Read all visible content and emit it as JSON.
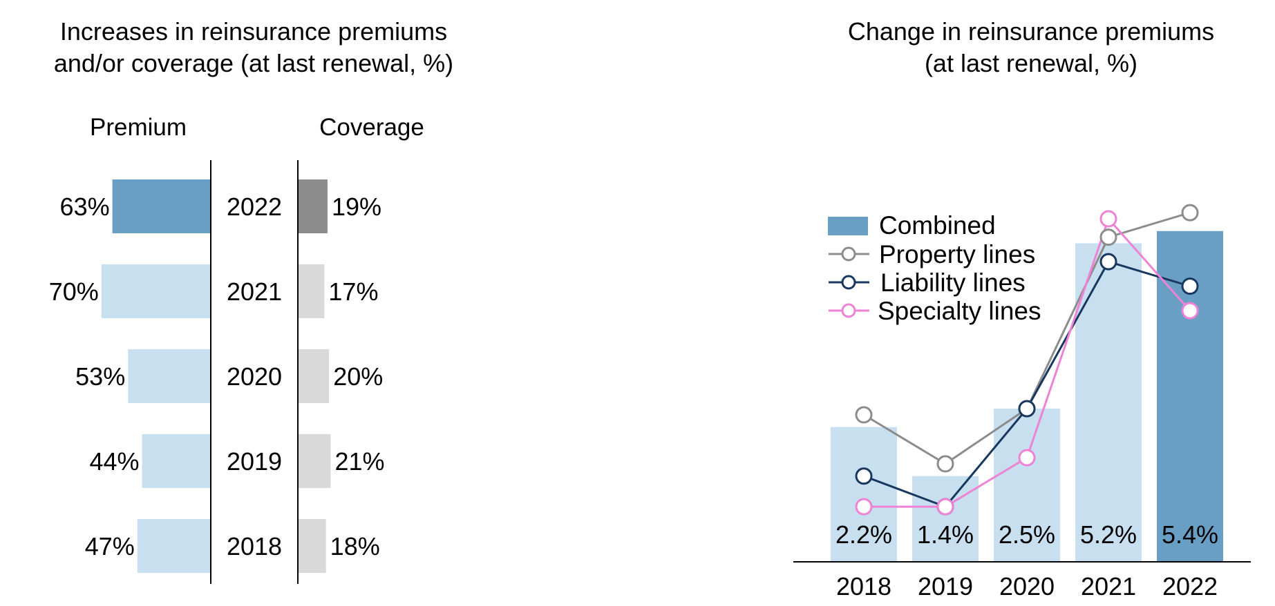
{
  "colors": {
    "premium_highlight": "#6a9fc5",
    "premium_default": "#c7dfee",
    "coverage_highlight": "#8c8c8c",
    "coverage_default": "#d9d9d9",
    "combined_highlight": "#6a9fc5",
    "combined_default": "#c7dfee",
    "property": "#8c8c8c",
    "liability": "#17375e",
    "specialty": "#ee82d5",
    "axis": "#000000"
  },
  "chart_data": [
    {
      "type": "bar",
      "orientation": "horizontal-butterfly",
      "title_lines": [
        "Increases in reinsurance premiums",
        "and/or coverage (at last renewal, %)"
      ],
      "premium_header": "Premium",
      "coverage_header": "Coverage",
      "categories": [
        "2022",
        "2021",
        "2020",
        "2019",
        "2018"
      ],
      "series": [
        {
          "name": "Premium",
          "values": [
            63,
            70,
            53,
            44,
            47
          ],
          "labels": [
            "63%",
            "70%",
            "53%",
            "44%",
            "47%"
          ]
        },
        {
          "name": "Coverage",
          "values": [
            19,
            17,
            20,
            21,
            18
          ],
          "labels": [
            "19%",
            "17%",
            "20%",
            "21%",
            "18%"
          ]
        }
      ],
      "highlight_category": "2022",
      "grid": false
    },
    {
      "type": "bar",
      "title_lines": [
        "Change in reinsurance premiums",
        "(at last renewal, %)"
      ],
      "categories": [
        "2018",
        "2019",
        "2020",
        "2021",
        "2022"
      ],
      "ylim": [
        0,
        6.4
      ],
      "bar_series": {
        "name": "Combined",
        "values": [
          2.2,
          1.4,
          2.5,
          5.2,
          5.4
        ],
        "labels": [
          "2.2%",
          "1.4%",
          "2.5%",
          "5.2%",
          "5.4%"
        ]
      },
      "line_series": [
        {
          "name": "Property lines",
          "values": [
            2.4,
            1.6,
            2.5,
            5.3,
            5.7
          ]
        },
        {
          "name": "Liability lines",
          "values": [
            1.4,
            0.9,
            2.5,
            4.9,
            4.5
          ]
        },
        {
          "name": "Specialty lines",
          "values": [
            0.9,
            0.9,
            1.7,
            5.6,
            4.1
          ]
        }
      ],
      "legend": {
        "position": "top-left",
        "items": [
          "Combined",
          "Property lines",
          "Liability lines",
          "Specialty lines"
        ]
      },
      "highlight_category": "2022",
      "grid": false
    }
  ]
}
